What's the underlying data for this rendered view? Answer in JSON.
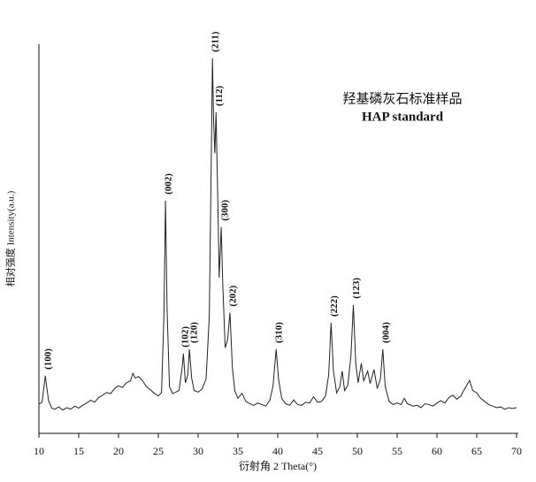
{
  "chart_data": {
    "type": "line",
    "x_label": "衍射角 2 Theta(°)",
    "y_label": "相对强度 Intensity(a.u.)",
    "sample_label": [
      "羟基磷灰石标准样品",
      "HAP standard"
    ],
    "color": "#222222",
    "xlim": [
      10,
      70
    ],
    "xticks": [
      10,
      15,
      20,
      25,
      30,
      35,
      40,
      45,
      50,
      55,
      60,
      65,
      70
    ],
    "ylim": [
      0,
      100
    ],
    "x": [
      10,
      10.4,
      10.8,
      11.2,
      11.6,
      12,
      12.5,
      13,
      13.5,
      14,
      14.5,
      15,
      15.5,
      16,
      16.5,
      17,
      17.5,
      18,
      18.5,
      19,
      19.5,
      20,
      20.5,
      21,
      21.5,
      21.8,
      22.1,
      22.5,
      23,
      23.5,
      24,
      24.5,
      25,
      25.4,
      25.7,
      25.9,
      26.1,
      26.4,
      26.8,
      27.2,
      27.6,
      28.0,
      28.15,
      28.4,
      28.7,
      28.9,
      29.2,
      29.5,
      30,
      30.5,
      31,
      31.4,
      31.65,
      31.8,
      31.95,
      32.1,
      32.25,
      32.45,
      32.65,
      32.9,
      33.1,
      33.4,
      33.7,
      34.0,
      34.3,
      34.6,
      35,
      35.5,
      36,
      36.5,
      37,
      37.5,
      38,
      38.5,
      39,
      39.4,
      39.8,
      40.1,
      40.5,
      41,
      41.5,
      42,
      42.5,
      43,
      43.5,
      44,
      44.5,
      45,
      45.5,
      46,
      46.4,
      46.7,
      47,
      47.4,
      47.8,
      48.1,
      48.4,
      48.8,
      49.2,
      49.5,
      49.8,
      50.1,
      50.5,
      50.8,
      51.3,
      51.6,
      52.1,
      52.5,
      52.9,
      53.2,
      53.5,
      54,
      54.5,
      55,
      55.5,
      55.9,
      56.3,
      57,
      57.5,
      58,
      58.5,
      59,
      59.5,
      60,
      60.5,
      61,
      61.5,
      62,
      62.5,
      63,
      63.5,
      64.1,
      64.5,
      65,
      65.5,
      66,
      66.5,
      67,
      67.5,
      68,
      68.5,
      69,
      69.5,
      70
    ],
    "values": [
      7.5,
      8,
      14.8,
      8.5,
      6.5,
      6.2,
      6.8,
      6,
      6.6,
      6.2,
      7,
      6.5,
      7.2,
      7.8,
      8.5,
      8,
      9.2,
      9.8,
      10.5,
      10.2,
      11.5,
      12.2,
      11.8,
      13,
      13.5,
      15.4,
      14.2,
      14.6,
      13.6,
      12,
      11.2,
      10.3,
      9.6,
      10.5,
      30,
      59.8,
      32,
      12,
      10.2,
      10.6,
      11,
      17,
      20.5,
      13,
      15,
      21.6,
      14,
      11,
      10.6,
      11.4,
      14,
      30,
      70,
      96.4,
      80,
      72,
      82.5,
      62,
      40,
      53,
      38,
      22,
      24,
      31,
      17,
      11,
      9,
      10.3,
      8.2,
      7.6,
      7.2,
      7.8,
      7.4,
      7,
      8.5,
      12,
      21.6,
      14,
      9,
      7.6,
      7.2,
      8.6,
      7.4,
      7.2,
      8,
      7.8,
      9.4,
      8,
      8.2,
      9.6,
      15,
      28.4,
      16,
      10.4,
      12,
      16,
      11,
      12.4,
      20,
      33,
      18,
      13,
      18,
      13.5,
      16,
      12.8,
      16.4,
      11.5,
      14,
      21.6,
      12,
      8.2,
      7.4,
      7.8,
      7.4,
      9,
      7.6,
      7,
      7.2,
      6.6,
      7.6,
      7.4,
      7,
      7.8,
      8.4,
      7.8,
      9.2,
      9.8,
      8.8,
      9.6,
      11.5,
      13.6,
      11,
      10.4,
      9,
      8.2,
      7.4,
      7,
      6.6,
      6.8,
      6.2,
      6.6,
      6.4,
      6.6
    ],
    "annotations": [
      {
        "text": "(100)",
        "x": 10.8,
        "y": 14.8
      },
      {
        "text": "(002)",
        "x": 25.9,
        "y": 59.8
      },
      {
        "text": "(102)",
        "x": 28.0,
        "y": 20.5
      },
      {
        "text": "(120)",
        "x": 29.1,
        "y": 21.6
      },
      {
        "text": "(211)",
        "x": 31.8,
        "y": 96.4
      },
      {
        "text": "(112)",
        "x": 32.3,
        "y": 82.5
      },
      {
        "text": "(300)",
        "x": 33.0,
        "y": 53
      },
      {
        "text": "(202)",
        "x": 34.0,
        "y": 31
      },
      {
        "text": "(310)",
        "x": 39.8,
        "y": 21.6
      },
      {
        "text": "(222)",
        "x": 46.7,
        "y": 28.4
      },
      {
        "text": "(123)",
        "x": 49.5,
        "y": 33
      },
      {
        "text": "(004)",
        "x": 53.2,
        "y": 21.6
      }
    ]
  }
}
